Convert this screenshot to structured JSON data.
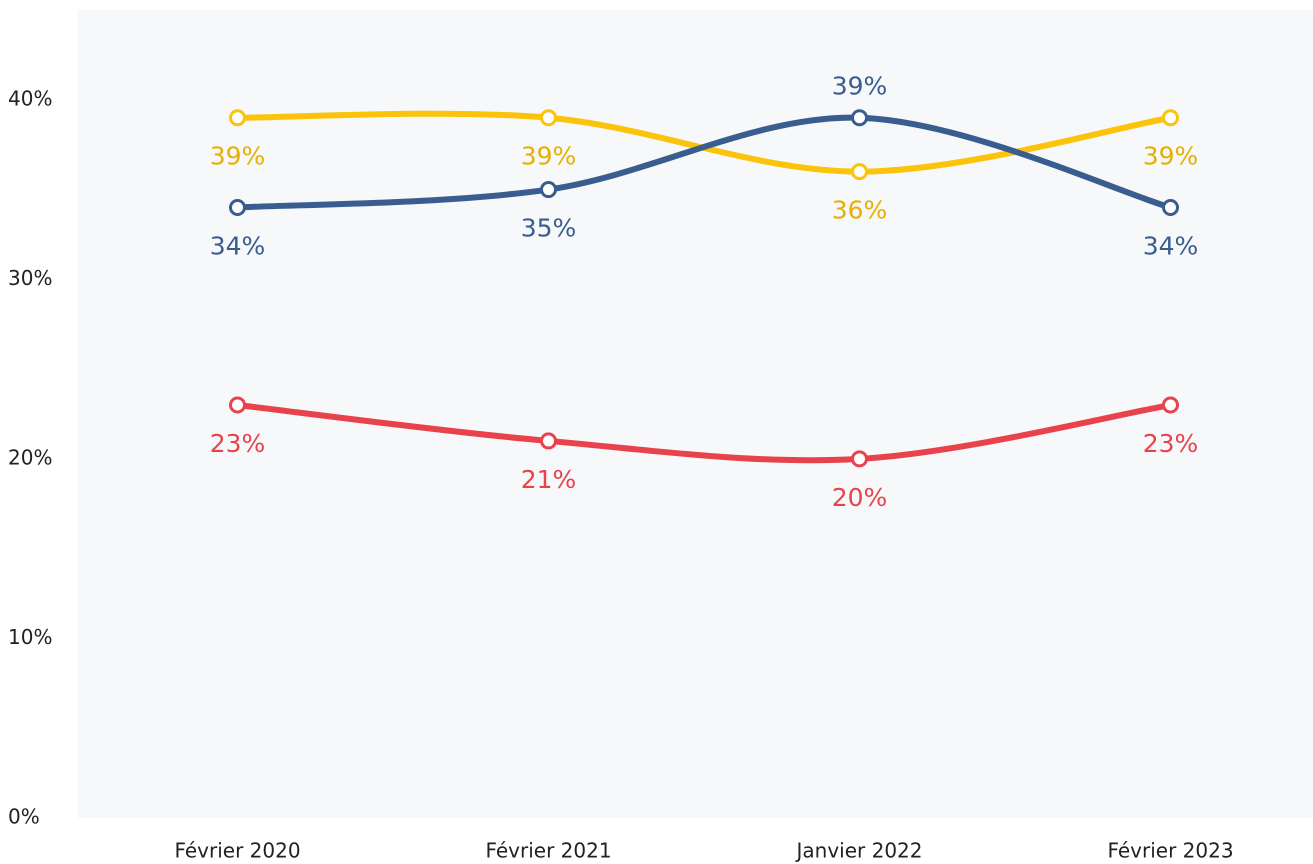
{
  "chart_data": {
    "type": "line",
    "categories": [
      "Février 2020",
      "Février 2021",
      "Janvier 2022",
      "Février 2023"
    ],
    "series": [
      {
        "color": "#fbc30a",
        "values": [
          39,
          39,
          36,
          39
        ],
        "value_labels": [
          "39%",
          "39%",
          "36%",
          "39%"
        ]
      },
      {
        "color": "#395d8e",
        "values": [
          34,
          35,
          39,
          34
        ],
        "value_labels": [
          "34%",
          "35%",
          "39%",
          "34%"
        ]
      },
      {
        "color": "#e8434c",
        "values": [
          23,
          21,
          20,
          23
        ],
        "value_labels": [
          "23%",
          "21%",
          "20%",
          "23%"
        ]
      }
    ],
    "ylim": [
      0,
      45
    ],
    "yticks": [
      {
        "value": 0,
        "label": "0%"
      },
      {
        "value": 10,
        "label": "10%"
      },
      {
        "value": 20,
        "label": "20%"
      },
      {
        "value": 30,
        "label": "30%"
      },
      {
        "value": 40,
        "label": "40%"
      }
    ],
    "grid": false
  }
}
